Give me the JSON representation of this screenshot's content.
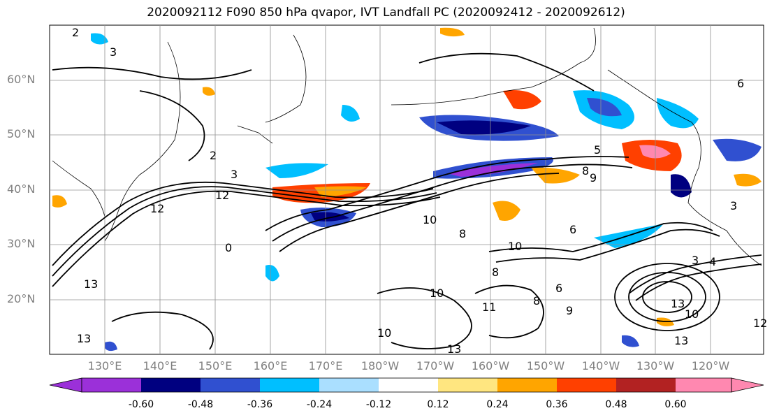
{
  "title": "2020092112 F090 850 hPa qvapor, IVT Landfall PC (2020092412 - 2020092612)",
  "latitude_labels": [
    "60°N",
    "50°N",
    "40°N",
    "30°N",
    "20°N"
  ],
  "longitude_labels": [
    "130°E",
    "140°E",
    "150°E",
    "160°E",
    "170°E",
    "180°W",
    "170°W",
    "160°W",
    "150°W",
    "140°W",
    "130°W",
    "120°W"
  ],
  "colorbar": {
    "colors": [
      "#9b30d9",
      "#000080",
      "#3050d0",
      "#00bfff",
      "#aadfff",
      "#ffffff",
      "#ffe680",
      "#ffa500",
      "#ff4000",
      "#b22222",
      "#ff88b0"
    ],
    "tick_labels": [
      "-0.60",
      "-0.48",
      "-0.36",
      "-0.24",
      "-0.12",
      "0.12",
      "0.24",
      "0.36",
      "0.48",
      "0.60"
    ],
    "extend": "both"
  },
  "contour_labels": [
    "2",
    "3",
    "5",
    "6",
    "8",
    "9",
    "10",
    "11",
    "12",
    "13",
    "14"
  ]
}
